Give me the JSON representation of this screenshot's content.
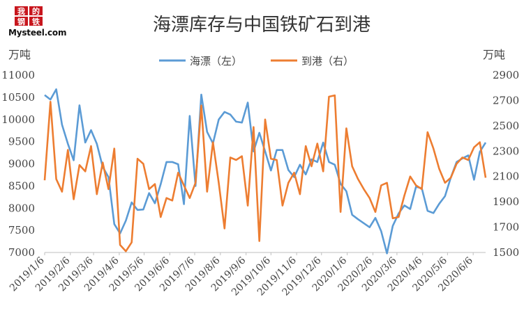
{
  "logo": {
    "badge_chars": [
      "我",
      "的",
      "钢",
      "铁"
    ],
    "site": "Mysteel.com"
  },
  "chart_data": {
    "type": "line",
    "title": "海漂库存与中国铁矿石到港",
    "y_left_unit": "万吨",
    "y_right_unit": "万吨",
    "y_left_ticks": [
      "7000",
      "7500",
      "8000",
      "8500",
      "9000",
      "9500",
      "10000",
      "10500",
      "11000"
    ],
    "y_right_ticks": [
      "1500",
      "1700",
      "1900",
      "2100",
      "2300",
      "2500",
      "2700",
      "2900"
    ],
    "ylim_left": [
      7000,
      11000
    ],
    "ylim_right": [
      1500,
      2900
    ],
    "x_labels": [
      "2019/1/6",
      "2019/2/6",
      "2019/3/6",
      "2019/4/6",
      "2019/5/6",
      "2019/6/6",
      "2019/7/6",
      "2019/8/6",
      "2019/9/6",
      "2019/10/6",
      "2019/11/6",
      "2019/12/6",
      "2020/1/6",
      "2020/2/6",
      "2020/3/6",
      "2020/4/6",
      "2020/5/6",
      "2020/6/6"
    ],
    "x_start": "2019-01-06",
    "x_end": "2020-06-21",
    "grid": false,
    "legend": "top",
    "series": [
      {
        "name": "海漂（左）",
        "axis": "left",
        "color": "#5b9bd5",
        "points": [
          [
            "2019-01-06",
            10550
          ],
          [
            "2019-01-13",
            10450
          ],
          [
            "2019-01-20",
            10680
          ],
          [
            "2019-01-27",
            9880
          ],
          [
            "2019-02-03",
            9450
          ],
          [
            "2019-02-10",
            9080
          ],
          [
            "2019-02-17",
            10320
          ],
          [
            "2019-02-24",
            9480
          ],
          [
            "2019-03-03",
            9760
          ],
          [
            "2019-03-10",
            9450
          ],
          [
            "2019-03-17",
            8930
          ],
          [
            "2019-03-24",
            8700
          ],
          [
            "2019-03-31",
            7640
          ],
          [
            "2019-04-07",
            7430
          ],
          [
            "2019-04-14",
            7720
          ],
          [
            "2019-04-21",
            8130
          ],
          [
            "2019-04-28",
            7960
          ],
          [
            "2019-05-05",
            7970
          ],
          [
            "2019-05-12",
            8340
          ],
          [
            "2019-05-19",
            8110
          ],
          [
            "2019-05-26",
            8540
          ],
          [
            "2019-06-02",
            9040
          ],
          [
            "2019-06-09",
            9040
          ],
          [
            "2019-06-16",
            8990
          ],
          [
            "2019-06-23",
            8090
          ],
          [
            "2019-06-30",
            10080
          ],
          [
            "2019-07-07",
            8500
          ],
          [
            "2019-07-14",
            10560
          ],
          [
            "2019-07-21",
            9720
          ],
          [
            "2019-07-28",
            9460
          ],
          [
            "2019-08-04",
            10000
          ],
          [
            "2019-08-11",
            10170
          ],
          [
            "2019-08-18",
            10110
          ],
          [
            "2019-08-25",
            9950
          ],
          [
            "2019-09-01",
            9930
          ],
          [
            "2019-09-08",
            10380
          ],
          [
            "2019-09-15",
            9280
          ],
          [
            "2019-09-22",
            9700
          ],
          [
            "2019-09-29",
            9280
          ],
          [
            "2019-10-06",
            8850
          ],
          [
            "2019-10-13",
            9310
          ],
          [
            "2019-10-20",
            9310
          ],
          [
            "2019-10-27",
            8860
          ],
          [
            "2019-11-03",
            8700
          ],
          [
            "2019-11-10",
            8980
          ],
          [
            "2019-11-17",
            8760
          ],
          [
            "2019-11-24",
            9100
          ],
          [
            "2019-12-01",
            9040
          ],
          [
            "2019-12-08",
            9480
          ],
          [
            "2019-12-15",
            9040
          ],
          [
            "2019-12-22",
            8980
          ],
          [
            "2019-12-29",
            8550
          ],
          [
            "2020-01-05",
            8380
          ],
          [
            "2020-01-12",
            7850
          ],
          [
            "2020-01-19",
            7750
          ],
          [
            "2020-01-26",
            7660
          ],
          [
            "2020-02-02",
            7570
          ],
          [
            "2020-02-09",
            7780
          ],
          [
            "2020-02-16",
            7480
          ],
          [
            "2020-02-23",
            6980
          ],
          [
            "2020-03-01",
            7600
          ],
          [
            "2020-03-08",
            7880
          ],
          [
            "2020-03-15",
            8060
          ],
          [
            "2020-03-22",
            7980
          ],
          [
            "2020-03-29",
            8480
          ],
          [
            "2020-04-05",
            8450
          ],
          [
            "2020-04-12",
            7940
          ],
          [
            "2020-04-19",
            7890
          ],
          [
            "2020-04-26",
            8100
          ],
          [
            "2020-05-03",
            8270
          ],
          [
            "2020-05-10",
            8690
          ],
          [
            "2020-05-17",
            9040
          ],
          [
            "2020-05-24",
            9120
          ],
          [
            "2020-05-31",
            9190
          ],
          [
            "2020-06-07",
            8640
          ],
          [
            "2020-06-14",
            9270
          ],
          [
            "2020-06-21",
            9480
          ]
        ]
      },
      {
        "name": "到港（右）",
        "axis": "right",
        "color": "#ed7d31",
        "points": [
          [
            "2019-01-06",
            2070
          ],
          [
            "2019-01-13",
            2690
          ],
          [
            "2019-01-20",
            2080
          ],
          [
            "2019-01-27",
            1980
          ],
          [
            "2019-02-03",
            2310
          ],
          [
            "2019-02-10",
            1920
          ],
          [
            "2019-02-17",
            2190
          ],
          [
            "2019-02-24",
            2140
          ],
          [
            "2019-03-03",
            2340
          ],
          [
            "2019-03-10",
            1960
          ],
          [
            "2019-03-17",
            2210
          ],
          [
            "2019-03-24",
            2000
          ],
          [
            "2019-03-31",
            2320
          ],
          [
            "2019-04-07",
            1560
          ],
          [
            "2019-04-14",
            1510
          ],
          [
            "2019-04-21",
            1580
          ],
          [
            "2019-04-28",
            2240
          ],
          [
            "2019-05-05",
            2200
          ],
          [
            "2019-05-12",
            2000
          ],
          [
            "2019-05-19",
            2040
          ],
          [
            "2019-05-26",
            1780
          ],
          [
            "2019-06-02",
            1930
          ],
          [
            "2019-06-09",
            1910
          ],
          [
            "2019-06-16",
            2130
          ],
          [
            "2019-06-23",
            2030
          ],
          [
            "2019-06-30",
            1930
          ],
          [
            "2019-07-07",
            2050
          ],
          [
            "2019-07-14",
            2660
          ],
          [
            "2019-07-21",
            1980
          ],
          [
            "2019-07-28",
            2370
          ],
          [
            "2019-08-04",
            2050
          ],
          [
            "2019-08-11",
            1690
          ],
          [
            "2019-08-18",
            2250
          ],
          [
            "2019-08-25",
            2230
          ],
          [
            "2019-09-01",
            2260
          ],
          [
            "2019-09-08",
            1870
          ],
          [
            "2019-09-15",
            2490
          ],
          [
            "2019-09-22",
            1590
          ],
          [
            "2019-09-29",
            2550
          ],
          [
            "2019-10-06",
            2240
          ],
          [
            "2019-10-13",
            2230
          ],
          [
            "2019-10-20",
            1870
          ],
          [
            "2019-10-27",
            2050
          ],
          [
            "2019-11-03",
            2130
          ],
          [
            "2019-11-10",
            1960
          ],
          [
            "2019-11-17",
            2340
          ],
          [
            "2019-11-24",
            2180
          ],
          [
            "2019-12-01",
            2360
          ],
          [
            "2019-12-08",
            2140
          ],
          [
            "2019-12-15",
            2730
          ],
          [
            "2019-12-22",
            2740
          ],
          [
            "2019-12-29",
            1820
          ],
          [
            "2020-01-05",
            2480
          ],
          [
            "2020-01-12",
            2180
          ],
          [
            "2020-01-19",
            2080
          ],
          [
            "2020-01-26",
            2000
          ],
          [
            "2020-02-02",
            1930
          ],
          [
            "2020-02-09",
            1820
          ],
          [
            "2020-02-16",
            2030
          ],
          [
            "2020-02-23",
            2050
          ],
          [
            "2020-03-01",
            1770
          ],
          [
            "2020-03-08",
            1780
          ],
          [
            "2020-03-15",
            1950
          ],
          [
            "2020-03-22",
            2100
          ],
          [
            "2020-03-29",
            2030
          ],
          [
            "2020-04-05",
            2000
          ],
          [
            "2020-04-12",
            2450
          ],
          [
            "2020-04-19",
            2320
          ],
          [
            "2020-04-26",
            2160
          ],
          [
            "2020-05-03",
            2050
          ],
          [
            "2020-05-10",
            2090
          ],
          [
            "2020-05-17",
            2200
          ],
          [
            "2020-05-24",
            2250
          ],
          [
            "2020-05-31",
            2230
          ],
          [
            "2020-06-07",
            2330
          ],
          [
            "2020-06-14",
            2370
          ],
          [
            "2020-06-21",
            2090
          ]
        ]
      }
    ]
  }
}
